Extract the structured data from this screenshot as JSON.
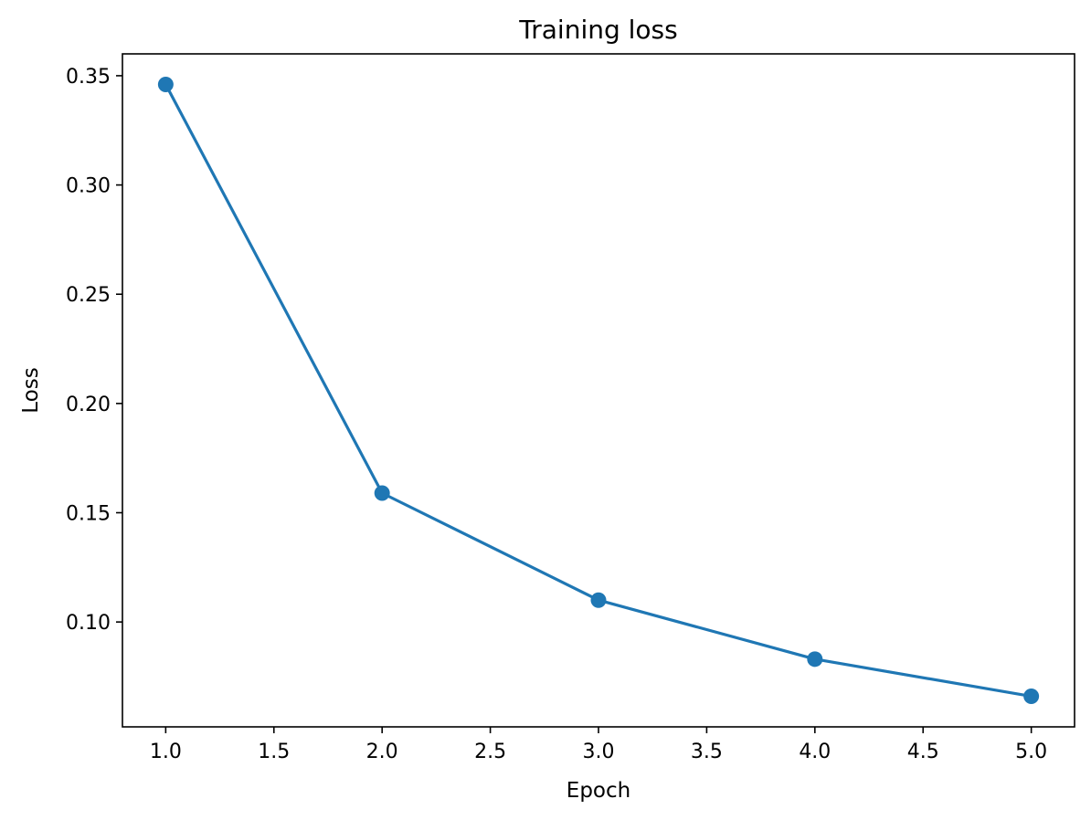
{
  "chart_data": {
    "type": "line",
    "title": "Training loss",
    "xlabel": "Epoch",
    "ylabel": "Loss",
    "x": [
      1,
      2,
      3,
      4,
      5
    ],
    "series": [
      {
        "values": [
          0.346,
          0.159,
          0.11,
          0.083,
          0.066
        ],
        "color": "#1f77b4",
        "marker": "circle"
      }
    ],
    "xlim": [
      0.8,
      5.2
    ],
    "ylim": [
      0.052,
      0.36
    ],
    "xticks": [
      "1.0",
      "1.5",
      "2.0",
      "2.5",
      "3.0",
      "3.5",
      "4.0",
      "4.5",
      "5.0"
    ],
    "yticks": [
      "0.10",
      "0.15",
      "0.20",
      "0.25",
      "0.30",
      "0.35"
    ],
    "grid": false,
    "legend": "none"
  }
}
